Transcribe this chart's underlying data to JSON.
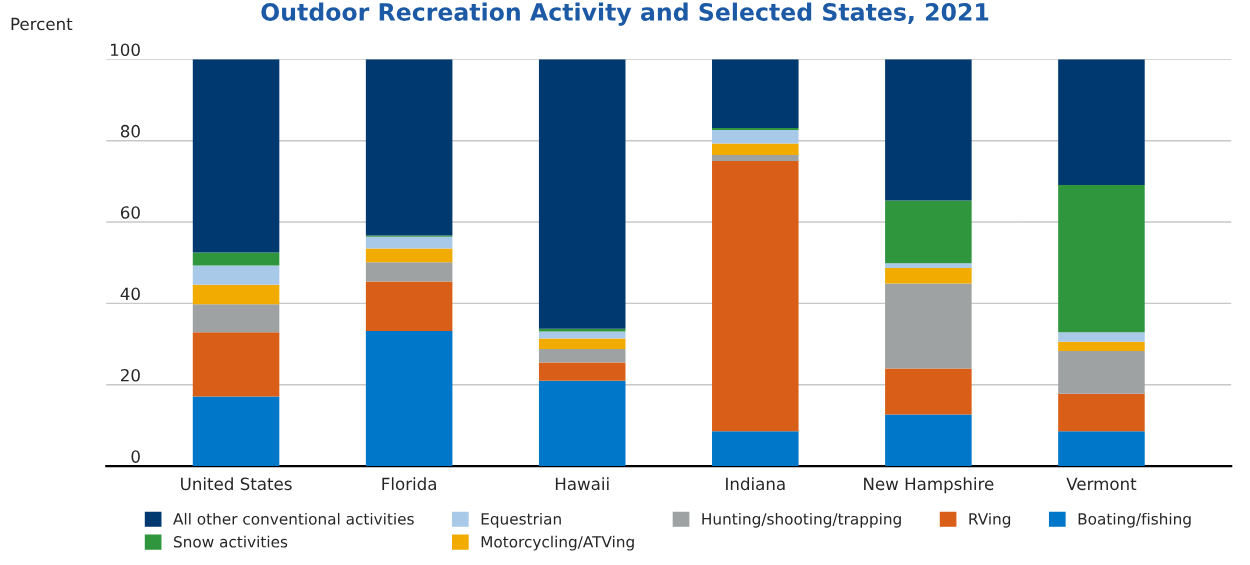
{
  "chart_data": {
    "type": "bar",
    "stacked": true,
    "title": "Outdoor Recreation Activity and Selected States, 2021",
    "ylabel": "Percent",
    "categories": [
      "United States",
      "Florida",
      "Hawaii",
      "Indiana",
      "New Hampshire",
      "Vermont"
    ],
    "series": [
      {
        "name": "Boating/fishing",
        "color": "#0077c8",
        "values": [
          17.1,
          33.2,
          21.0,
          8.6,
          12.7,
          8.6
        ]
      },
      {
        "name": "RVing",
        "color": "#d95f18",
        "values": [
          15.8,
          12.2,
          4.5,
          66.4,
          11.3,
          9.2
        ]
      },
      {
        "name": "Hunting/shooting/trapping",
        "color": "#9fa2a2",
        "values": [
          6.9,
          4.7,
          3.3,
          1.5,
          20.9,
          10.5
        ]
      },
      {
        "name": "Motorcycling/ATVing",
        "color": "#f2ab00",
        "values": [
          4.8,
          3.4,
          2.6,
          2.8,
          3.8,
          2.3
        ]
      },
      {
        "name": "Equestrian",
        "color": "#a9c9e8",
        "values": [
          4.7,
          2.9,
          1.7,
          3.3,
          1.2,
          2.3
        ]
      },
      {
        "name": "Snow activities",
        "color": "#2f963e",
        "values": [
          3.2,
          0.3,
          0.7,
          0.5,
          15.4,
          36.2
        ]
      },
      {
        "name": "All other conventional activities",
        "color": "#003870",
        "values": [
          47.5,
          43.3,
          66.2,
          16.9,
          34.7,
          30.9
        ]
      }
    ],
    "ylim": [
      0,
      100
    ],
    "yticks": [
      0,
      20,
      40,
      60,
      80,
      100
    ],
    "grid": "y",
    "legend": "bottom"
  }
}
